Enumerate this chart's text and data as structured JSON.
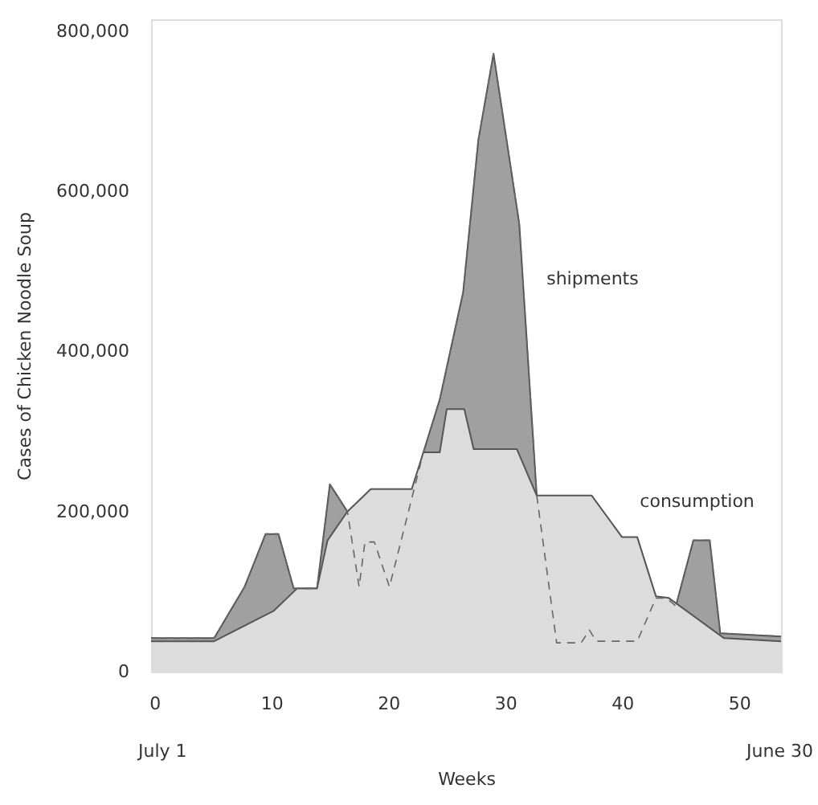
{
  "chart_data": {
    "type": "area",
    "xlabel": "Weeks",
    "ylabel": "Cases of Chicken Noodle Soup",
    "xlim": [
      -0.3,
      53.6
    ],
    "xticks": [
      0,
      10,
      20,
      30,
      40,
      50
    ],
    "ylim": [
      0,
      815000
    ],
    "yticks": [
      {
        "value": 0,
        "label": "0"
      },
      {
        "value": 200000,
        "label": "200,000"
      },
      {
        "value": 400000,
        "label": "400,000"
      },
      {
        "value": 600000,
        "label": "600,000"
      },
      {
        "value": 800000,
        "label": "800,000"
      }
    ],
    "grid": false,
    "annotations": [
      "July 1",
      "June 30"
    ],
    "series": [
      {
        "name": "shipments",
        "color": "#a0a0a0",
        "line_style": "dashed",
        "x": [
          -0.3,
          5.1,
          7.7,
          9.5,
          10.6,
          11.9,
          13.9,
          15,
          16.5,
          17.5,
          18,
          18.8,
          20.1,
          23,
          24.4,
          26.4,
          27.7,
          29,
          31.2,
          32.7,
          34.4,
          36.5,
          37.2,
          37.8,
          41.3,
          42.9,
          43.8,
          44.6,
          46.1,
          47.5,
          48.4,
          53.6
        ],
        "values": [
          42000,
          42000,
          106000,
          172000,
          172000,
          104000,
          104000,
          234000,
          200000,
          106000,
          162000,
          162000,
          106000,
          274000,
          340000,
          474000,
          664000,
          772000,
          560000,
          220000,
          36000,
          36000,
          52000,
          38000,
          38000,
          92000,
          92000,
          82000,
          164000,
          164000,
          48000,
          44000
        ]
      },
      {
        "name": "consumption",
        "color": "#dcdcdc",
        "line_style": "solid",
        "x": [
          -0.3,
          5.1,
          10.2,
          12.2,
          13.9,
          14.8,
          16.5,
          18.5,
          22,
          23,
          24.4,
          25,
          26.5,
          27.3,
          31,
          32.7,
          37.4,
          40,
          41.3,
          42.9,
          44,
          48.7,
          53.6
        ],
        "values": [
          38000,
          38000,
          76000,
          104000,
          104000,
          164000,
          200000,
          228000,
          228000,
          274000,
          274000,
          328000,
          328000,
          278000,
          278000,
          220000,
          220000,
          168000,
          168000,
          94000,
          92000,
          42000,
          38000
        ]
      }
    ]
  }
}
